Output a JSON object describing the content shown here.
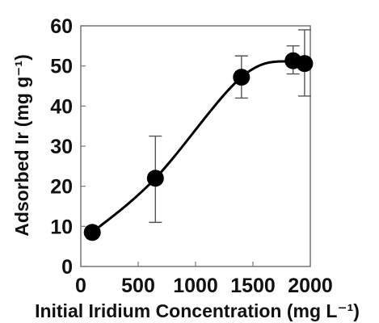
{
  "chart_data": {
    "type": "scatter",
    "xlabel": "Initial Iridium Concentration (mg L⁻¹)",
    "ylabel": "Adsorbed Ir (mg g⁻¹)",
    "xlim": [
      0,
      2000
    ],
    "ylim": [
      0,
      60
    ],
    "x_ticks": [
      "0",
      "500",
      "1000",
      "1500",
      "2000"
    ],
    "y_ticks": [
      "0",
      "10",
      "20",
      "30",
      "40",
      "50",
      "60"
    ],
    "grid": false,
    "legend": "none",
    "fit_line": true,
    "series": [
      {
        "x": [
          100,
          650,
          1400,
          1850,
          1950
        ],
        "y": [
          8.5,
          22,
          47.2,
          51.3,
          50.6
        ],
        "error": [
          [
            null,
            null
          ],
          [
            11,
            32.5
          ],
          [
            42,
            52.5
          ],
          [
            48,
            55
          ],
          [
            42.5,
            59
          ]
        ]
      }
    ],
    "colors": {
      "marker": "#000000",
      "line": "#000000",
      "axis": "#111111"
    }
  }
}
